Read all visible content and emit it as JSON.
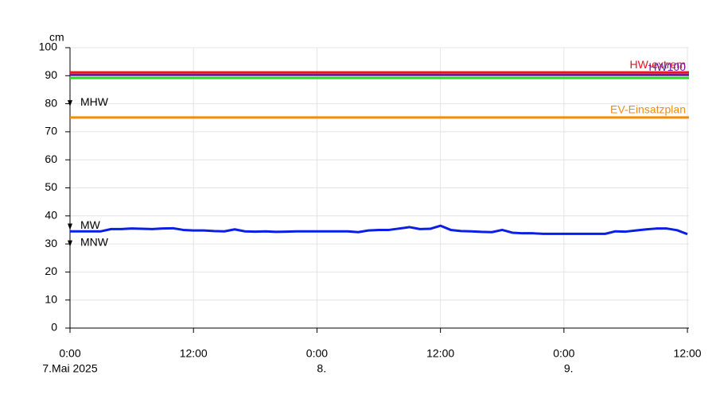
{
  "chart_data": {
    "type": "line",
    "ylabel": "cm",
    "ylim": [
      0,
      100
    ],
    "yticks": [
      0,
      10,
      20,
      30,
      40,
      50,
      60,
      70,
      80,
      90,
      100
    ],
    "xlim": [
      0,
      60.15
    ],
    "xticks": [
      {
        "value": 0,
        "label": "0:00",
        "date": "7.Mai 2025"
      },
      {
        "value": 12,
        "label": "12:00"
      },
      {
        "value": 24,
        "label": "0:00",
        "date": "8."
      },
      {
        "value": 36,
        "label": "12:00"
      },
      {
        "value": 48,
        "label": "0:00",
        "date": "9."
      },
      {
        "value": 60,
        "label": "12:00"
      }
    ],
    "grid": true,
    "x": [
      0,
      1,
      2,
      3,
      4,
      5,
      6,
      7,
      8,
      9,
      10,
      11,
      12,
      13,
      14,
      15,
      16,
      17,
      18,
      19,
      20,
      21,
      22,
      23,
      24,
      25,
      26,
      27,
      28,
      29,
      30,
      31,
      32,
      33,
      34,
      35,
      36,
      37,
      38,
      39,
      40,
      41,
      42,
      43,
      44,
      45,
      46,
      47,
      48,
      49,
      50,
      51,
      52,
      53,
      54,
      55,
      56,
      57,
      58,
      59,
      60
    ],
    "series": [
      {
        "color": "#0a1ee6",
        "values": [
          34.5,
          34.5,
          34.5,
          34.5,
          35.3,
          35.3,
          35.5,
          35.4,
          35.3,
          35.5,
          35.6,
          35.0,
          34.8,
          34.8,
          34.6,
          34.5,
          35.2,
          34.5,
          34.4,
          34.5,
          34.3,
          34.4,
          34.5,
          34.5,
          34.5,
          34.5,
          34.5,
          34.5,
          34.2,
          34.8,
          35.0,
          35.0,
          35.5,
          36.0,
          35.3,
          35.4,
          36.5,
          35.0,
          34.6,
          34.5,
          34.3,
          34.2,
          35.0,
          34.0,
          33.8,
          33.8,
          33.6,
          33.6,
          33.6,
          33.6,
          33.6,
          33.6,
          33.6,
          34.5,
          34.4,
          34.8,
          35.2,
          35.5,
          35.5,
          34.9,
          33.5
        ]
      }
    ],
    "reference_lines": [
      {
        "name": "HW-extrem",
        "value": 91.2,
        "color": "#e8141e"
      },
      {
        "name": "HW100",
        "value": 90.3,
        "color": "#6a1aa8"
      },
      {
        "value": 89.2,
        "color": "#22dd22"
      },
      {
        "name": "EV-Einsatzplan",
        "value": 75.1,
        "color": "#f08c14"
      }
    ],
    "markers": [
      {
        "label": "MHW",
        "value": 79
      },
      {
        "label": "MW",
        "value": 35
      },
      {
        "label": "MNW",
        "value": 29
      }
    ]
  }
}
